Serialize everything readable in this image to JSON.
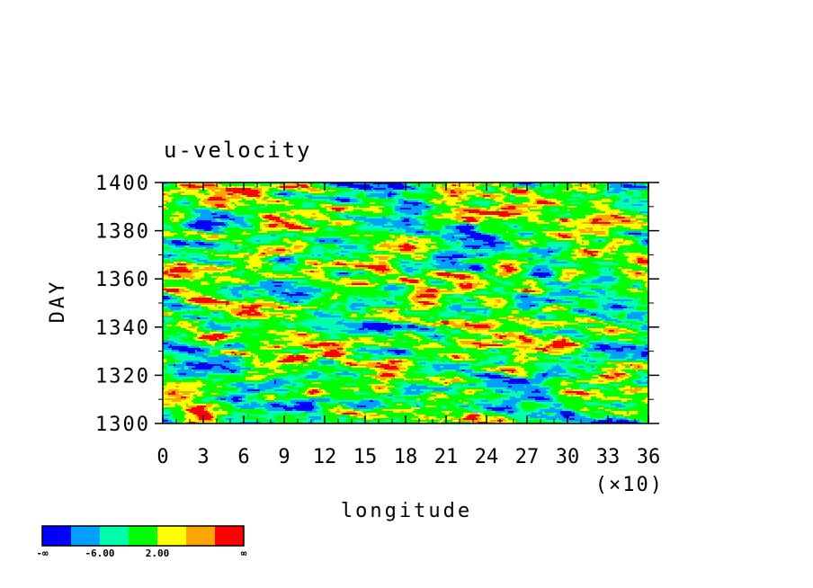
{
  "chart_data": {
    "type": "heatmap",
    "title": "u-velocity",
    "xlabel": "longitude",
    "ylabel": "DAY",
    "x_multiplier": "(×10)",
    "xlim": [
      0,
      36
    ],
    "ylim": [
      1300,
      1400
    ],
    "x_ticks": [
      "0",
      "3",
      "6",
      "9",
      "12",
      "15",
      "18",
      "21",
      "24",
      "27",
      "30",
      "33",
      "36"
    ],
    "y_ticks": [
      "1300",
      "1320",
      "1340",
      "1360",
      "1380",
      "1400"
    ],
    "colorbar": {
      "colors": [
        "#0000ff",
        "#00a0ff",
        "#00ffaa",
        "#00ff00",
        "#ffff00",
        "#ffa500",
        "#ff0000"
      ],
      "labels": [
        "-∞",
        "-6.00",
        "2.00",
        "∞"
      ]
    }
  }
}
